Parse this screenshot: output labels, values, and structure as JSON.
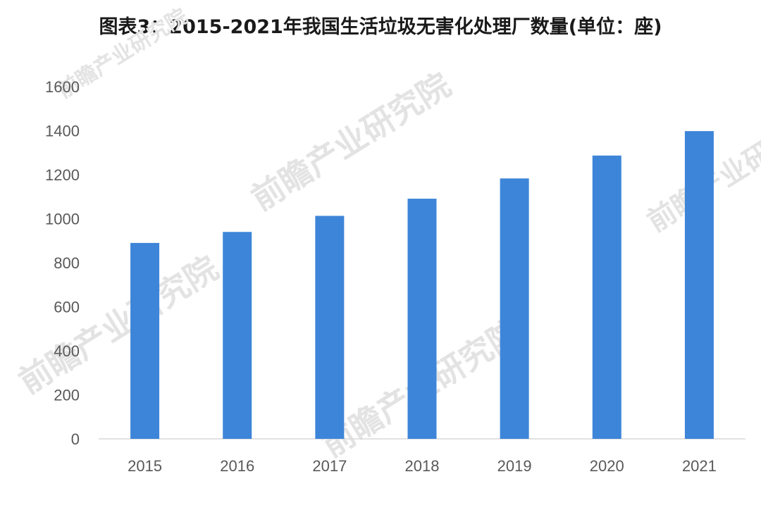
{
  "title": "图表3：2015-2021年我国生活垃圾无害化处理厂数量(单位：座)",
  "watermark": {
    "brand": "前瞻产业研究院"
  },
  "colors": {
    "bar": "#3d85d8",
    "axis": "#d9d9d9",
    "tick_text": "#595959",
    "title_text": "#1a1a1a"
  },
  "chart_data": {
    "type": "bar",
    "title": "图表3：2015-2021年我国生活垃圾无害化处理厂数量(单位：座)",
    "categories": [
      "2015",
      "2016",
      "2017",
      "2018",
      "2019",
      "2020",
      "2021"
    ],
    "values": [
      890,
      940,
      1013,
      1091,
      1183,
      1287,
      1398
    ],
    "ylim": [
      0,
      1600
    ],
    "yticks": [
      0,
      200,
      400,
      600,
      800,
      1000,
      1200,
      1400,
      1600
    ],
    "xlabel": "",
    "ylabel": "",
    "grid": false,
    "legend": "none"
  }
}
